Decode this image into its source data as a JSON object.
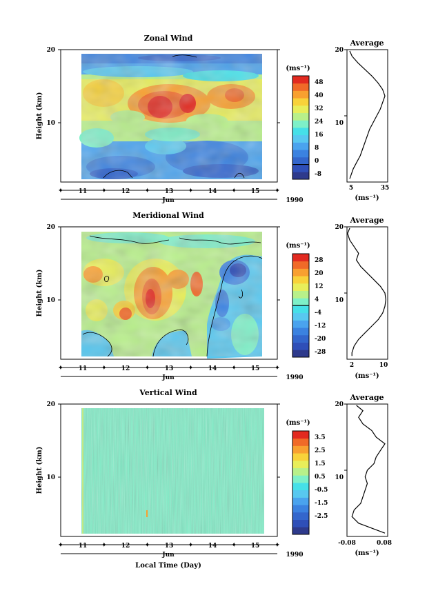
{
  "figure": {
    "bottom_xlabel": "Local Time (Day)",
    "time_axis_label": "Jun",
    "year_label": "1990",
    "days": [
      "11",
      "12",
      "13",
      "14",
      "15"
    ],
    "y_label": "Height (km)",
    "y_ticks": [
      "10",
      "20"
    ],
    "avg_title": "Average",
    "unit": "(ms⁻¹)"
  },
  "colormap": [
    "#2e3a8c",
    "#2f4fb8",
    "#3366cc",
    "#3b82e0",
    "#4aa3ee",
    "#58c8f0",
    "#46e0e8",
    "#7ef0c8",
    "#b8f08a",
    "#e8ee5a",
    "#f8d23a",
    "#f8a030",
    "#f06a28",
    "#e22a20"
  ],
  "chart_data": [
    {
      "type": "heatmap",
      "name": "zonal",
      "title": "Zonal Wind",
      "x": [
        "11",
        "12",
        "13",
        "14",
        "15"
      ],
      "ylim": [
        0,
        20
      ],
      "colorbar": {
        "label": "(ms⁻¹)",
        "ticks": [
          "48",
          "40",
          "32",
          "24",
          "16",
          "8",
          "0",
          "-8"
        ],
        "range": [
          -8,
          48
        ]
      },
      "profile_title": "Average",
      "profile_xticks": [
        "5",
        "35"
      ],
      "profile_xlim": [
        5,
        35
      ],
      "profile_xlabel": "(ms⁻¹)",
      "profile_yticks": [
        "10",
        "20"
      ],
      "profile": {
        "height": [
          0.5,
          1,
          2,
          3,
          4,
          5,
          6,
          7,
          8,
          9,
          10,
          11,
          12,
          13,
          14,
          15,
          16,
          17,
          18,
          19,
          19.8
        ],
        "value": [
          5,
          6,
          8,
          11,
          14,
          16,
          18,
          20,
          22,
          25,
          28,
          31,
          33,
          35,
          33,
          29,
          24,
          18,
          12,
          7,
          5
        ]
      }
    },
    {
      "type": "heatmap",
      "name": "meridional",
      "title": "Meridional Wind",
      "x": [
        "11",
        "12",
        "13",
        "14",
        "15"
      ],
      "ylim": [
        0,
        20
      ],
      "colorbar": {
        "label": "(ms⁻¹)",
        "ticks": [
          "28",
          "20",
          "12",
          "4",
          "-4",
          "-12",
          "-20",
          "-28"
        ],
        "range": [
          -28,
          28
        ]
      },
      "profile_title": "Average",
      "profile_xticks": [
        "2",
        "10"
      ],
      "profile_xlim": [
        2,
        10
      ],
      "profile_xlabel": "(ms⁻¹)",
      "profile_yticks": [
        "10",
        "20"
      ],
      "profile": {
        "height": [
          0.5,
          1,
          2,
          3,
          4,
          5,
          6,
          7,
          8,
          9,
          10,
          11,
          12,
          13,
          14,
          15,
          16,
          17,
          18,
          19,
          19.8
        ],
        "value": [
          2.5,
          2.5,
          3.0,
          4.0,
          5.5,
          7.0,
          8.5,
          9.5,
          10.0,
          10.2,
          10.0,
          9.0,
          7.5,
          6.0,
          4.5,
          3.5,
          4.0,
          3.0,
          2.0,
          1.5,
          2.0
        ]
      }
    },
    {
      "type": "heatmap",
      "name": "vertical",
      "title": "Vertical Wind",
      "x": [
        "11",
        "12",
        "13",
        "14",
        "15"
      ],
      "ylim": [
        0,
        20
      ],
      "colorbar": {
        "label": "(ms⁻¹)",
        "ticks": [
          "3.5",
          "2.5",
          "1.5",
          "0.5",
          "-0.5",
          "-1.5",
          "-2.5"
        ],
        "range": [
          -3.5,
          3.5
        ]
      },
      "profile_title": "Average",
      "profile_xticks": [
        "-0.08",
        "0.08"
      ],
      "profile_xlim": [
        -0.08,
        0.08
      ],
      "profile_xlabel": "(ms⁻¹)",
      "profile_yticks": [
        "10",
        "20"
      ],
      "profile": {
        "height": [
          0.5,
          1,
          2,
          3,
          4,
          5,
          6,
          7,
          8,
          9,
          10,
          11,
          12,
          13,
          14,
          15,
          16,
          17,
          18,
          19,
          19.8
        ],
        "value": [
          0.08,
          0.04,
          -0.04,
          -0.07,
          -0.06,
          -0.03,
          -0.02,
          -0.01,
          0.0,
          -0.01,
          0.0,
          0.03,
          0.04,
          0.06,
          0.08,
          0.04,
          0.02,
          -0.02,
          -0.04,
          -0.02,
          -0.05
        ]
      }
    }
  ]
}
